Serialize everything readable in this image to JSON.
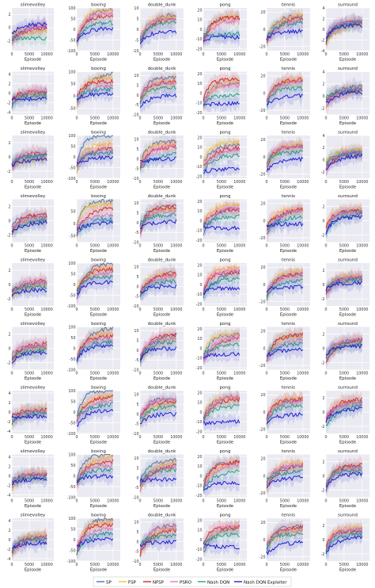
{
  "figure": {
    "legend": [
      "SP",
      "FSP",
      "NFSP",
      "PSRO",
      "Nash DQN",
      "Nash DQN Exploiter"
    ],
    "xlabel": "Episode",
    "xticks": [
      "0",
      "5000",
      "10000"
    ]
  },
  "colors": {
    "SP": "#4c72b0",
    "FSP": "#f5c33b",
    "NFSP": "#d62728",
    "PSRO": "#e377c2",
    "Nash DQN": "#2a9d8f",
    "Nash DQN Exploiter": "#1f1fcf",
    "axes_bg": "#eaeaf2",
    "grid": "#ffffff"
  },
  "chart_data": [
    {
      "type": "line",
      "row": 0,
      "title": "slimevolley",
      "yticks": [
        2,
        0,
        -2
      ],
      "ylim": [
        -3.5,
        3
      ],
      "levels": [
        0.1,
        -0.6,
        0.2,
        0.4,
        -1.6,
        0.5
      ]
    },
    {
      "type": "line",
      "row": 0,
      "title": "boxing",
      "yticks": [
        100,
        50,
        0,
        -50,
        -100
      ],
      "ylim": [
        -100,
        100
      ],
      "levels": [
        100,
        90,
        65,
        70,
        30,
        5
      ]
    },
    {
      "type": "line",
      "row": 0,
      "title": "double_dunk",
      "yticks": [
        10,
        5,
        0,
        -5,
        -10
      ],
      "ylim": [
        -10,
        10
      ],
      "levels": [
        8,
        6,
        6,
        5,
        3,
        -1
      ]
    },
    {
      "type": "line",
      "row": 0,
      "title": "pong",
      "yticks": [
        20,
        10,
        0,
        -10,
        -20
      ],
      "ylim": [
        -22,
        22
      ],
      "levels": [
        12,
        14,
        13,
        10,
        -5,
        -8
      ]
    },
    {
      "type": "line",
      "row": 0,
      "title": "tennis",
      "yticks": [
        20,
        0,
        -20
      ],
      "ylim": [
        -25,
        25
      ],
      "levels": [
        15,
        17,
        14,
        12,
        8,
        -2
      ]
    },
    {
      "type": "line",
      "row": 0,
      "title": "surround",
      "yticks": [
        4,
        2,
        0,
        -2,
        -4
      ],
      "ylim": [
        -4,
        4
      ],
      "levels": [
        1.5,
        1.2,
        1.3,
        1.4,
        1.1,
        0.8
      ]
    },
    {
      "type": "line",
      "row": 1,
      "title": "slimevolley",
      "yticks": [
        4,
        2,
        0,
        -2,
        -4
      ],
      "ylim": [
        -4.5,
        4.5
      ],
      "levels": [
        0.2,
        -0.3,
        0.4,
        0.6,
        -0.5,
        -1.2
      ]
    },
    {
      "type": "line",
      "row": 1,
      "title": "boxing",
      "yticks": [
        100,
        50,
        0,
        -50
      ],
      "ylim": [
        -75,
        100
      ],
      "levels": [
        100,
        75,
        60,
        45,
        30,
        10
      ]
    },
    {
      "type": "line",
      "row": 1,
      "title": "double_dunk",
      "yticks": [
        10,
        5,
        0,
        -5,
        -10
      ],
      "ylim": [
        -10,
        12
      ],
      "levels": [
        9,
        7,
        7,
        6,
        4,
        0
      ]
    },
    {
      "type": "line",
      "row": 1,
      "title": "pong",
      "yticks": [
        20,
        10,
        0,
        -10,
        -20
      ],
      "ylim": [
        -22,
        22
      ],
      "levels": [
        10,
        12,
        14,
        8,
        -2,
        -10
      ]
    },
    {
      "type": "line",
      "row": 1,
      "title": "tennis",
      "yticks": [
        20,
        0,
        -20
      ],
      "ylim": [
        -25,
        25
      ],
      "levels": [
        15,
        17,
        16,
        13,
        6,
        -3
      ]
    },
    {
      "type": "line",
      "row": 1,
      "title": "surround",
      "yticks": [
        4,
        2,
        0,
        -2
      ],
      "ylim": [
        -3,
        4
      ],
      "levels": [
        1.6,
        1.4,
        1.2,
        1.5,
        1.0,
        0.7
      ]
    },
    {
      "type": "line",
      "row": 2,
      "title": "slimevolley",
      "yticks": [
        2,
        0,
        -2
      ],
      "ylim": [
        -3,
        3
      ],
      "levels": [
        0.3,
        -0.2,
        0.5,
        0.6,
        0.2,
        -0.4
      ]
    },
    {
      "type": "line",
      "row": 2,
      "title": "boxing",
      "yticks": [
        100,
        50,
        0,
        -50,
        -100
      ],
      "ylim": [
        -100,
        100
      ],
      "levels": [
        100,
        60,
        45,
        30,
        20,
        0
      ]
    },
    {
      "type": "line",
      "row": 2,
      "title": "double_dunk",
      "yticks": [
        10,
        5,
        0,
        -5,
        -10
      ],
      "ylim": [
        -10,
        12
      ],
      "levels": [
        9,
        8,
        6,
        7,
        3,
        0
      ]
    },
    {
      "type": "line",
      "row": 2,
      "title": "pong",
      "yticks": [
        20,
        10,
        0,
        -10,
        -20
      ],
      "ylim": [
        -22,
        22
      ],
      "levels": [
        12,
        15,
        10,
        8,
        2,
        -12
      ]
    },
    {
      "type": "line",
      "row": 2,
      "title": "tennis",
      "yticks": [
        20,
        0,
        -20
      ],
      "ylim": [
        -25,
        25
      ],
      "levels": [
        14,
        15,
        13,
        12,
        6,
        -2
      ]
    },
    {
      "type": "line",
      "row": 2,
      "title": "surround",
      "yticks": [
        4,
        2,
        0,
        -2
      ],
      "ylim": [
        -3,
        4
      ],
      "levels": [
        1.5,
        1.8,
        1.3,
        1.4,
        1.0,
        0.8
      ]
    },
    {
      "type": "line",
      "row": 3,
      "title": "slimevolley",
      "yticks": [
        2,
        0,
        -2
      ],
      "ylim": [
        -3,
        3
      ],
      "levels": [
        0.6,
        0.3,
        0.8,
        0.5,
        0.1,
        -0.2
      ]
    },
    {
      "type": "line",
      "row": 3,
      "title": "boxing",
      "yticks": [
        50,
        0,
        -50
      ],
      "ylim": [
        -75,
        100
      ],
      "levels": [
        95,
        80,
        65,
        40,
        20,
        5
      ]
    },
    {
      "type": "line",
      "row": 3,
      "title": "double_dunk",
      "yticks": [
        10,
        5,
        0,
        -5,
        -10
      ],
      "ylim": [
        -10,
        12
      ],
      "levels": [
        9,
        7,
        8,
        6,
        4,
        1
      ]
    },
    {
      "type": "line",
      "row": 3,
      "title": "pong",
      "yticks": [
        20,
        10,
        0,
        -10,
        -20
      ],
      "ylim": [
        -22,
        22
      ],
      "levels": [
        14,
        16,
        12,
        13,
        4,
        -8
      ]
    },
    {
      "type": "line",
      "row": 3,
      "title": "tennis",
      "yticks": [
        20,
        0,
        -20
      ],
      "ylim": [
        -25,
        25
      ],
      "levels": [
        16,
        14,
        15,
        13,
        5,
        -4
      ]
    },
    {
      "type": "line",
      "row": 3,
      "title": "surround",
      "yticks": [
        2,
        0,
        -2
      ],
      "ylim": [
        -3,
        3
      ],
      "levels": [
        1.4,
        1.6,
        1.5,
        1.2,
        0.9,
        0.5
      ]
    },
    {
      "type": "line",
      "row": 4,
      "title": "slimevolley",
      "yticks": [
        2,
        0,
        -2
      ],
      "ylim": [
        -3,
        3
      ],
      "levels": [
        0.2,
        -0.1,
        0.6,
        0.4,
        -0.4,
        -0.8
      ]
    },
    {
      "type": "line",
      "row": 4,
      "title": "boxing",
      "yticks": [
        100,
        50,
        0,
        -50,
        -100
      ],
      "ylim": [
        -100,
        100
      ],
      "levels": [
        100,
        85,
        70,
        55,
        35,
        10
      ]
    },
    {
      "type": "line",
      "row": 4,
      "title": "double_dunk",
      "yticks": [
        10,
        5,
        0,
        -5,
        -10
      ],
      "ylim": [
        -10,
        12
      ],
      "levels": [
        8,
        6,
        7,
        6,
        3,
        0
      ]
    },
    {
      "type": "line",
      "row": 4,
      "title": "pong",
      "yticks": [
        20,
        10,
        0,
        -10,
        -20
      ],
      "ylim": [
        -22,
        22
      ],
      "levels": [
        15,
        16,
        13,
        14,
        6,
        -4
      ]
    },
    {
      "type": "line",
      "row": 4,
      "title": "tennis",
      "yticks": [
        20,
        0,
        -20
      ],
      "ylim": [
        -25,
        25
      ],
      "levels": [
        12,
        15,
        13,
        11,
        4,
        -3
      ]
    },
    {
      "type": "line",
      "row": 4,
      "title": "surround",
      "yticks": [
        2,
        0,
        -2
      ],
      "ylim": [
        -3,
        3
      ],
      "levels": [
        1.0,
        1.3,
        0.9,
        1.1,
        0.6,
        0.2
      ]
    },
    {
      "type": "line",
      "row": 5,
      "title": "slimevolley",
      "yticks": [
        2,
        0,
        -2
      ],
      "ylim": [
        -3,
        3
      ],
      "levels": [
        0.4,
        0.1,
        0.7,
        0.5,
        -0.2,
        -0.6
      ]
    },
    {
      "type": "line",
      "row": 5,
      "title": "boxing",
      "yticks": [
        100,
        50,
        0,
        -50,
        -100
      ],
      "ylim": [
        -100,
        100
      ],
      "levels": [
        100,
        75,
        55,
        45,
        30,
        10
      ]
    },
    {
      "type": "line",
      "row": 5,
      "title": "double_dunk",
      "yticks": [
        10,
        5,
        0,
        -5,
        -10
      ],
      "ylim": [
        -10,
        12
      ],
      "levels": [
        9,
        7,
        8,
        6,
        4,
        1
      ]
    },
    {
      "type": "line",
      "row": 5,
      "title": "pong",
      "yticks": [
        20,
        10,
        0,
        -10,
        -20
      ],
      "ylim": [
        -22,
        22
      ],
      "levels": [
        14,
        15,
        13,
        12,
        5,
        -6
      ]
    },
    {
      "type": "line",
      "row": 5,
      "title": "tennis",
      "yticks": [
        20,
        0,
        -20
      ],
      "ylim": [
        -25,
        25
      ],
      "levels": [
        15,
        14,
        16,
        12,
        6,
        -2
      ]
    },
    {
      "type": "line",
      "row": 5,
      "title": "surround",
      "yticks": [
        2,
        0,
        -2
      ],
      "ylim": [
        -3,
        3
      ],
      "levels": [
        1.2,
        1.0,
        1.4,
        1.1,
        0.7,
        0.3
      ]
    },
    {
      "type": "line",
      "row": 6,
      "title": "slimevolley",
      "yticks": [
        4,
        2,
        0,
        -2,
        -4
      ],
      "ylim": [
        -4.5,
        4.5
      ],
      "levels": [
        0.5,
        0.8,
        0.4,
        0.3,
        -0.3,
        -0.9
      ]
    },
    {
      "type": "line",
      "row": 6,
      "title": "boxing",
      "yticks": [
        100,
        50,
        0,
        -50,
        -100
      ],
      "ylim": [
        -100,
        100
      ],
      "levels": [
        100,
        80,
        75,
        55,
        40,
        5
      ]
    },
    {
      "type": "line",
      "row": 6,
      "title": "double_dunk",
      "yticks": [
        10,
        5,
        0,
        -5,
        -10
      ],
      "ylim": [
        -10,
        12
      ],
      "levels": [
        8,
        7,
        6,
        7,
        4,
        0
      ]
    },
    {
      "type": "line",
      "row": 6,
      "title": "pong",
      "yticks": [
        20,
        10,
        0,
        -10,
        -20
      ],
      "ylim": [
        -22,
        22
      ],
      "levels": [
        16,
        14,
        13,
        15,
        6,
        -10
      ]
    },
    {
      "type": "line",
      "row": 6,
      "title": "tennis",
      "yticks": [
        20,
        0,
        -20
      ],
      "ylim": [
        -25,
        25
      ],
      "levels": [
        14,
        16,
        15,
        13,
        7,
        -3
      ]
    },
    {
      "type": "line",
      "row": 6,
      "title": "surround",
      "yticks": [
        2,
        0,
        -2
      ],
      "ylim": [
        -3,
        3
      ],
      "levels": [
        1.6,
        1.5,
        1.8,
        1.4,
        1.0,
        0.4
      ]
    },
    {
      "type": "line",
      "row": 7,
      "title": "slimevolley",
      "yticks": [
        4,
        2,
        0,
        -2,
        -4
      ],
      "ylim": [
        -4.5,
        4.5
      ],
      "levels": [
        0.3,
        0.6,
        0.2,
        0.5,
        -0.2,
        -0.7
      ]
    },
    {
      "type": "line",
      "row": 7,
      "title": "boxing",
      "yticks": [
        100,
        50,
        0,
        -50,
        -100
      ],
      "ylim": [
        -100,
        100
      ],
      "levels": [
        100,
        90,
        70,
        50,
        30,
        0
      ]
    },
    {
      "type": "line",
      "row": 7,
      "title": "double_dunk",
      "yticks": [
        10,
        5,
        0,
        -5,
        -10
      ],
      "ylim": [
        -10,
        12
      ],
      "levels": [
        9,
        8,
        7,
        6,
        4,
        -1
      ]
    },
    {
      "type": "line",
      "row": 7,
      "title": "pong",
      "yticks": [
        20,
        10,
        0,
        -10,
        -20
      ],
      "ylim": [
        -22,
        22
      ],
      "levels": [
        15,
        16,
        14,
        13,
        6,
        -7
      ]
    },
    {
      "type": "line",
      "row": 7,
      "title": "tennis",
      "yticks": [
        20,
        0,
        -20
      ],
      "ylim": [
        -25,
        25
      ],
      "levels": [
        13,
        15,
        14,
        12,
        5,
        -2
      ]
    },
    {
      "type": "line",
      "row": 7,
      "title": "surround",
      "yticks": [
        2,
        0,
        -2
      ],
      "ylim": [
        -3,
        3
      ],
      "levels": [
        1.3,
        1.1,
        1.5,
        1.2,
        0.8,
        0.3
      ]
    },
    {
      "type": "line",
      "row": 8,
      "title": "slimevolley",
      "yticks": [
        4,
        2,
        0,
        -2,
        -4
      ],
      "ylim": [
        -4.5,
        4.5
      ],
      "levels": [
        0.6,
        1.0,
        0.7,
        0.4,
        0.0,
        -0.6
      ]
    },
    {
      "type": "line",
      "row": 8,
      "title": "boxing",
      "yticks": [
        100,
        50,
        0,
        -50,
        -100
      ],
      "ylim": [
        -100,
        100
      ],
      "levels": [
        100,
        85,
        70,
        60,
        35,
        5
      ]
    },
    {
      "type": "line",
      "row": 8,
      "title": "double_dunk",
      "yticks": [
        10,
        5,
        0,
        -5,
        -10
      ],
      "ylim": [
        -10,
        12
      ],
      "levels": [
        9,
        7,
        6,
        7,
        3,
        0
      ]
    },
    {
      "type": "line",
      "row": 8,
      "title": "pong",
      "yticks": [
        20,
        10,
        0,
        -10,
        -20
      ],
      "ylim": [
        -22,
        22
      ],
      "levels": [
        14,
        15,
        13,
        14,
        5,
        -8
      ]
    },
    {
      "type": "line",
      "row": 8,
      "title": "tennis",
      "yticks": [
        20,
        0,
        -20
      ],
      "ylim": [
        -25,
        25
      ],
      "levels": [
        15,
        13,
        14,
        12,
        6,
        -3
      ]
    },
    {
      "type": "line",
      "row": 8,
      "title": "surround",
      "yticks": [
        2,
        0,
        -2
      ],
      "ylim": [
        -3,
        3
      ],
      "levels": [
        1.4,
        1.6,
        1.2,
        1.3,
        0.9,
        0.4
      ]
    }
  ]
}
